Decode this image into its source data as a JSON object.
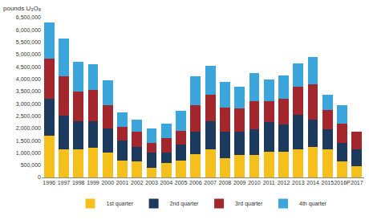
{
  "chart_data": {
    "type": "bar",
    "stacked": true,
    "ylabel": "pounds U₃O₈",
    "categories": [
      "1996",
      "1997",
      "1998",
      "1999",
      "2000",
      "2001",
      "2002",
      "2003",
      "2004",
      "2005",
      "2006",
      "2007",
      "2008",
      "2009",
      "2010",
      "2011",
      "2012",
      "2013",
      "2014",
      "2015",
      "2016P",
      "2017"
    ],
    "series": [
      {
        "name": "1st quarter",
        "color": "#f5bf1c",
        "values": [
          1700000,
          1150000,
          1150000,
          1200000,
          1000000,
          700000,
          650000,
          400000,
          600000,
          700000,
          950000,
          1150000,
          800000,
          900000,
          900000,
          1050000,
          1050000,
          1150000,
          1250000,
          1150000,
          650000,
          450000
        ]
      },
      {
        "name": "2nd quarter",
        "color": "#1b3a5e",
        "values": [
          1500000,
          1350000,
          1150000,
          1100000,
          1000000,
          800000,
          600000,
          600000,
          400000,
          650000,
          900000,
          1150000,
          1050000,
          950000,
          1050000,
          1200000,
          1100000,
          1400000,
          1100000,
          800000,
          750000,
          700000
        ]
      },
      {
        "name": "3rd quarter",
        "color": "#a3262d",
        "values": [
          1650000,
          1600000,
          1200000,
          1250000,
          950000,
          550000,
          600000,
          400000,
          600000,
          550000,
          1100000,
          1050000,
          1000000,
          950000,
          1150000,
          850000,
          1050000,
          1150000,
          1450000,
          800000,
          800000,
          700000
        ]
      },
      {
        "name": "4th quarter",
        "color": "#3aa6dc",
        "values": [
          1450000,
          1550000,
          1200000,
          1050000,
          1000000,
          600000,
          500000,
          600000,
          600000,
          800000,
          1150000,
          1200000,
          1050000,
          900000,
          1150000,
          900000,
          950000,
          950000,
          1100000,
          600000,
          750000,
          null
        ]
      }
    ],
    "ylim": [
      0,
      6500000
    ],
    "yticks": [
      0,
      {
        "value": 500000,
        "label": "500,000"
      },
      {
        "value": 1000000,
        "label": "1,000,000"
      },
      {
        "value": 1500000,
        "label": "1,500,000"
      },
      {
        "value": 2000000,
        "label": "2,000,000"
      },
      {
        "value": 2500000,
        "label": "2,500,000"
      },
      {
        "value": 3000000,
        "label": "3,000,000"
      },
      {
        "value": 3500000,
        "label": "3,500,000"
      },
      {
        "value": 4000000,
        "label": "4,000,000"
      },
      {
        "value": 4500000,
        "label": "4,500,000"
      },
      {
        "value": 5000000,
        "label": "5,000,000"
      },
      {
        "value": 5500000,
        "label": "5,500,000"
      },
      {
        "value": 6000000,
        "label": "6,000,000"
      },
      {
        "value": 6500000,
        "label": "6,500,000"
      }
    ],
    "grid": false,
    "legend": "bottom"
  }
}
